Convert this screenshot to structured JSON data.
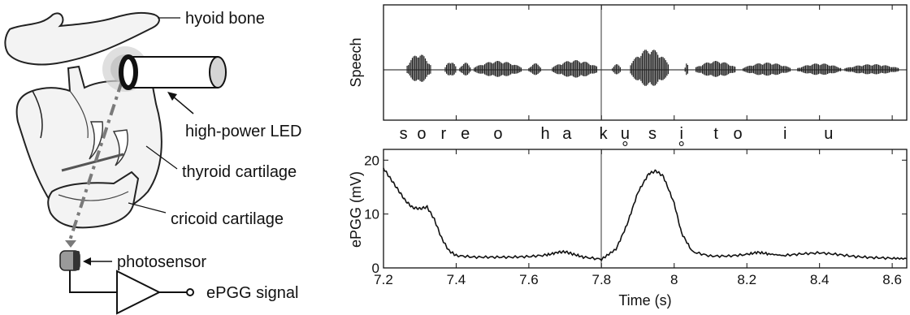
{
  "diagram": {
    "labels": {
      "hyoid": "hyoid bone",
      "led": "high-power LED",
      "thyroid": "thyroid cartilage",
      "cricoid": "cricoid cartilage",
      "photosensor": "photosensor",
      "signal": "ePGG signal"
    },
    "icons": [
      "led-icon",
      "photosensor-icon",
      "amplifier-icon"
    ]
  },
  "speech_panel": {
    "ylabel": "Speech",
    "phonemes": [
      {
        "t": 7.255,
        "text": "s"
      },
      {
        "t": 7.305,
        "text": "o"
      },
      {
        "t": 7.365,
        "text": "r"
      },
      {
        "t": 7.425,
        "text": "e"
      },
      {
        "t": 7.515,
        "text": "o"
      },
      {
        "t": 7.645,
        "text": "h"
      },
      {
        "t": 7.705,
        "text": "a"
      },
      {
        "t": 7.805,
        "text": "k"
      },
      {
        "t": 7.865,
        "text": "u",
        "devoiced": true
      },
      {
        "t": 7.94,
        "text": "s"
      },
      {
        "t": 8.02,
        "text": "i",
        "devoiced": true
      },
      {
        "t": 8.115,
        "text": "t"
      },
      {
        "t": 8.175,
        "text": "o"
      },
      {
        "t": 8.305,
        "text": "i"
      },
      {
        "t": 8.425,
        "text": "u"
      }
    ]
  },
  "chart_data": {
    "type": "line",
    "xlabel": "Time (s)",
    "ylabel": "ePGG (mV)",
    "xlim": [
      7.2,
      8.64
    ],
    "ylim": [
      0,
      22
    ],
    "xticks": [
      7.2,
      7.4,
      7.6,
      7.8,
      8,
      8.2,
      8.4,
      8.6
    ],
    "yticks": [
      0,
      10,
      20
    ],
    "marker_time": 7.8,
    "series": [
      {
        "x": [
          7.2,
          7.22,
          7.24,
          7.26,
          7.28,
          7.3,
          7.32,
          7.34,
          7.36,
          7.38,
          7.4,
          7.45,
          7.5,
          7.55,
          7.6,
          7.65,
          7.68,
          7.7,
          7.72,
          7.75,
          7.8,
          7.84,
          7.87,
          7.9,
          7.93,
          7.95,
          7.97,
          8.0,
          8.02,
          8.05,
          8.1,
          8.15,
          8.2,
          8.23,
          8.26,
          8.3,
          8.35,
          8.4,
          8.45,
          8.5,
          8.55,
          8.6,
          8.64
        ],
        "y": [
          18.5,
          16.5,
          14.5,
          12.5,
          11.2,
          11.0,
          11.3,
          9.0,
          5.5,
          3.2,
          2.3,
          2.0,
          2.0,
          2.0,
          2.1,
          2.4,
          2.9,
          3.0,
          2.6,
          2.0,
          1.6,
          3.5,
          8.0,
          14.0,
          17.5,
          18.0,
          17.0,
          12.0,
          6.5,
          3.0,
          2.2,
          2.2,
          2.5,
          2.9,
          2.6,
          2.3,
          2.6,
          2.8,
          2.5,
          2.1,
          1.9,
          1.8,
          1.7
        ]
      }
    ]
  }
}
